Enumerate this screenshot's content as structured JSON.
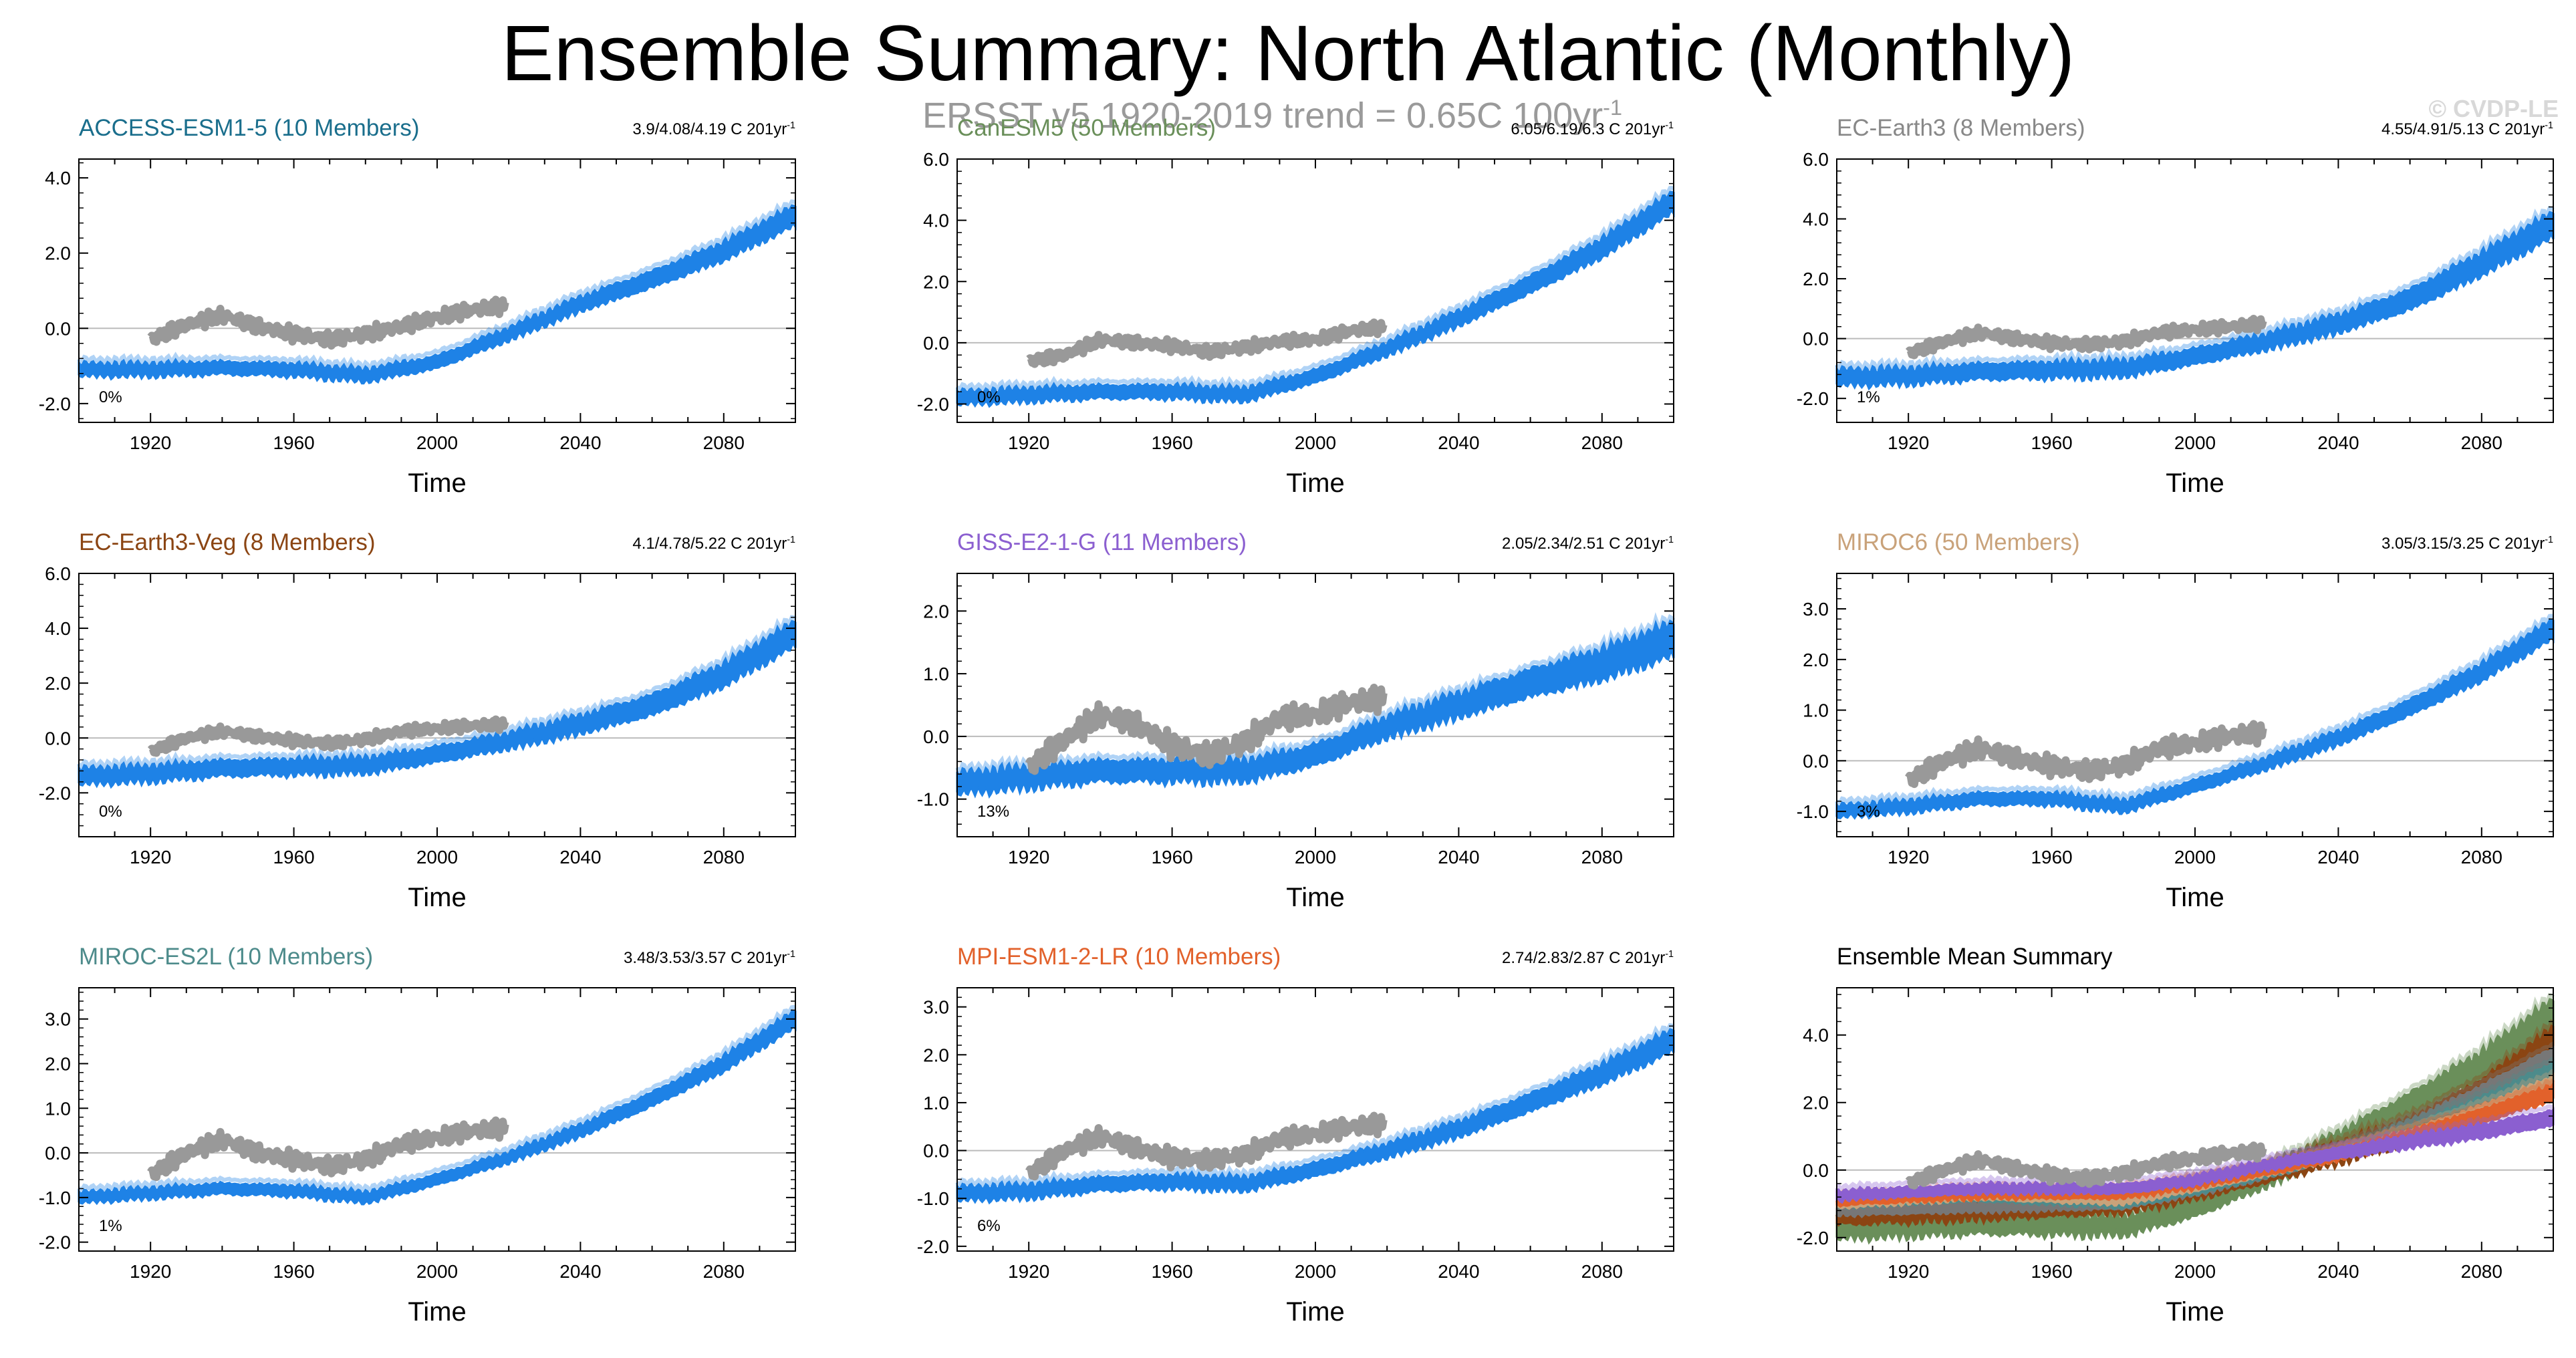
{
  "title": "Ensemble Summary: North Atlantic (Monthly)",
  "subtitle": {
    "text": "ERSST v5 1920-2019 trend = 0.65C 100yr",
    "sup": "-1"
  },
  "credit": "© CVDP-LE",
  "colors": {
    "model_band": "#1e82e6",
    "obs": "#999999",
    "grid": "#bbbbbb",
    "axis": "#000000"
  },
  "chart_data": [
    {
      "type": "line",
      "title": "ACCESS-ESM1-5 (10 Members)",
      "title_color": "#1a6e8c",
      "trend_text": "3.9/4.08/4.19 C 201yr",
      "trend_sup": "-1",
      "pct": "0%",
      "xlabel": "Time",
      "xlim": [
        1900,
        2100
      ],
      "ylim": [
        -2.5,
        4.5
      ],
      "xticks": [
        1920,
        1960,
        2000,
        2040,
        2080
      ],
      "yticks": [
        -2.0,
        0.0,
        2.0,
        4.0
      ],
      "series": [
        {
          "name": "ensemble range",
          "kind": "band",
          "x": [
            1900,
            1920,
            1940,
            1960,
            1980,
            2000,
            2020,
            2040,
            2060,
            2080,
            2100
          ],
          "values": [
            -1.1,
            -1.1,
            -1.05,
            -1.1,
            -1.25,
            -0.9,
            -0.15,
            0.65,
            1.3,
            2.05,
            3.0
          ],
          "width": 0.35
        },
        {
          "name": "ERSST v5",
          "kind": "line",
          "x": [
            1920,
            1930,
            1940,
            1950,
            1960,
            1970,
            1980,
            1990,
            2000,
            2010,
            2019
          ],
          "values": [
            -0.3,
            0.1,
            0.35,
            0.05,
            -0.15,
            -0.3,
            -0.15,
            0.05,
            0.3,
            0.5,
            0.6
          ]
        }
      ]
    },
    {
      "type": "line",
      "title": "CanESM5 (50 Members)",
      "title_color": "#6a8f5a",
      "trend_text": "6.05/6.19/6.3 C 201yr",
      "trend_sup": "-1",
      "pct": "0%",
      "xlabel": "Time",
      "xlim": [
        1900,
        2100
      ],
      "ylim": [
        -2.6,
        6.0
      ],
      "xticks": [
        1920,
        1960,
        2000,
        2040,
        2080
      ],
      "yticks": [
        -2.0,
        0.0,
        2.0,
        4.0,
        6.0
      ],
      "series": [
        {
          "name": "ensemble range",
          "kind": "band",
          "x": [
            1900,
            1920,
            1940,
            1960,
            1980,
            2000,
            2020,
            2040,
            2060,
            2080,
            2100
          ],
          "values": [
            -1.8,
            -1.7,
            -1.6,
            -1.6,
            -1.7,
            -1.1,
            -0.2,
            0.8,
            1.9,
            3.1,
            4.6
          ],
          "width": 0.45
        },
        {
          "name": "ERSST v5",
          "kind": "line",
          "x": [
            1920,
            1930,
            1940,
            1950,
            1960,
            1970,
            1980,
            1990,
            2000,
            2010,
            2019
          ],
          "values": [
            -0.6,
            -0.4,
            0.1,
            0.0,
            -0.1,
            -0.3,
            -0.15,
            0.05,
            0.1,
            0.4,
            0.5
          ]
        }
      ]
    },
    {
      "type": "line",
      "title": "EC-Earth3 (8 Members)",
      "title_color": "#888888",
      "trend_text": "4.55/4.91/5.13 C 201yr",
      "trend_sup": "-1",
      "pct": "1%",
      "xlabel": "Time",
      "xlim": [
        1900,
        2100
      ],
      "ylim": [
        -2.8,
        6.0
      ],
      "xticks": [
        1920,
        1960,
        2000,
        2040,
        2080
      ],
      "yticks": [
        -2.0,
        0.0,
        2.0,
        4.0,
        6.0
      ],
      "series": [
        {
          "name": "ensemble range",
          "kind": "band",
          "x": [
            1900,
            1920,
            1940,
            1960,
            1980,
            2000,
            2020,
            2040,
            2060,
            2080,
            2100
          ],
          "values": [
            -1.3,
            -1.25,
            -1.1,
            -1.05,
            -1.0,
            -0.6,
            -0.1,
            0.5,
            1.3,
            2.5,
            3.8
          ],
          "width": 0.55
        },
        {
          "name": "ERSST v5",
          "kind": "line",
          "x": [
            1920,
            1930,
            1940,
            1950,
            1960,
            1970,
            1980,
            1990,
            2000,
            2010,
            2019
          ],
          "values": [
            -0.5,
            -0.1,
            0.2,
            0.0,
            -0.15,
            -0.2,
            -0.1,
            0.2,
            0.3,
            0.4,
            0.5
          ]
        }
      ]
    },
    {
      "type": "line",
      "title": "EC-Earth3-Veg (8 Members)",
      "title_color": "#8b4513",
      "trend_text": "4.1/4.78/5.22 C 201yr",
      "trend_sup": "-1",
      "pct": "0%",
      "xlabel": "Time",
      "xlim": [
        1900,
        2100
      ],
      "ylim": [
        -3.6,
        6.0
      ],
      "xticks": [
        1920,
        1960,
        2000,
        2040,
        2080
      ],
      "yticks": [
        -2.0,
        0.0,
        2.0,
        4.0,
        6.0
      ],
      "series": [
        {
          "name": "ensemble range",
          "kind": "band",
          "x": [
            1900,
            1920,
            1940,
            1960,
            1980,
            2000,
            2020,
            2040,
            2060,
            2080,
            2100
          ],
          "values": [
            -1.4,
            -1.3,
            -1.1,
            -1.05,
            -1.0,
            -0.6,
            -0.1,
            0.5,
            1.2,
            2.3,
            3.8
          ],
          "width": 0.6
        },
        {
          "name": "ERSST v5",
          "kind": "line",
          "x": [
            1920,
            1930,
            1940,
            1950,
            1960,
            1970,
            1980,
            1990,
            2000,
            2010,
            2019
          ],
          "values": [
            -0.5,
            0.0,
            0.25,
            0.05,
            -0.1,
            -0.2,
            -0.05,
            0.25,
            0.35,
            0.45,
            0.5
          ]
        }
      ]
    },
    {
      "type": "line",
      "title": "GISS-E2-1-G (11 Members)",
      "title_color": "#8b5fd0",
      "trend_text": "2.05/2.34/2.51 C 201yr",
      "trend_sup": "-1",
      "pct": "13%",
      "xlabel": "Time",
      "xlim": [
        1900,
        2100
      ],
      "ylim": [
        -1.6,
        2.6
      ],
      "xticks": [
        1920,
        1960,
        2000,
        2040,
        2080
      ],
      "yticks": [
        -1.0,
        0.0,
        1.0,
        2.0
      ],
      "series": [
        {
          "name": "ensemble range",
          "kind": "band",
          "x": [
            1900,
            1920,
            1940,
            1960,
            1980,
            2000,
            2020,
            2040,
            2060,
            2080,
            2100
          ],
          "values": [
            -0.75,
            -0.65,
            -0.55,
            -0.55,
            -0.55,
            -0.3,
            0.15,
            0.5,
            0.85,
            1.15,
            1.55
          ],
          "width": 0.35
        },
        {
          "name": "ERSST v5",
          "kind": "line",
          "x": [
            1920,
            1930,
            1940,
            1950,
            1960,
            1970,
            1980,
            1990,
            2000,
            2010,
            2019
          ],
          "values": [
            -0.5,
            -0.05,
            0.35,
            0.2,
            -0.15,
            -0.3,
            -0.1,
            0.3,
            0.35,
            0.55,
            0.6
          ]
        }
      ]
    },
    {
      "type": "line",
      "title": "MIROC6 (50 Members)",
      "title_color": "#c9a27a",
      "trend_text": "3.05/3.15/3.25 C 201yr",
      "trend_sup": "-1",
      "pct": "3%",
      "xlabel": "Time",
      "xlim": [
        1900,
        2100
      ],
      "ylim": [
        -1.5,
        3.7
      ],
      "xticks": [
        1920,
        1960,
        2000,
        2040,
        2080
      ],
      "yticks": [
        -1.0,
        0.0,
        1.0,
        2.0,
        3.0
      ],
      "series": [
        {
          "name": "ensemble range",
          "kind": "band",
          "x": [
            1900,
            1920,
            1940,
            1960,
            1980,
            2000,
            2020,
            2040,
            2060,
            2080,
            2100
          ],
          "values": [
            -1.0,
            -0.9,
            -0.75,
            -0.75,
            -0.9,
            -0.5,
            -0.05,
            0.45,
            1.05,
            1.75,
            2.6
          ],
          "width": 0.25
        },
        {
          "name": "ERSST v5",
          "kind": "line",
          "x": [
            1920,
            1930,
            1940,
            1950,
            1960,
            1970,
            1980,
            1990,
            2000,
            2010,
            2019
          ],
          "values": [
            -0.4,
            0.0,
            0.25,
            0.05,
            -0.1,
            -0.2,
            -0.1,
            0.25,
            0.35,
            0.5,
            0.55
          ]
        }
      ]
    },
    {
      "type": "line",
      "title": "MIROC-ES2L (10 Members)",
      "title_color": "#4d8b8b",
      "trend_text": "3.48/3.53/3.57 C 201yr",
      "trend_sup": "-1",
      "pct": "1%",
      "xlabel": "Time",
      "xlim": [
        1900,
        2100
      ],
      "ylim": [
        -2.2,
        3.7
      ],
      "xticks": [
        1920,
        1960,
        2000,
        2040,
        2080
      ],
      "yticks": [
        -2.0,
        -1.0,
        0.0,
        1.0,
        2.0,
        3.0
      ],
      "series": [
        {
          "name": "ensemble range",
          "kind": "band",
          "x": [
            1900,
            1920,
            1940,
            1960,
            1980,
            2000,
            2020,
            2040,
            2060,
            2080,
            2100
          ],
          "values": [
            -1.0,
            -0.9,
            -0.8,
            -0.85,
            -1.0,
            -0.6,
            -0.1,
            0.5,
            1.2,
            2.0,
            3.0
          ],
          "width": 0.25
        },
        {
          "name": "ERSST v5",
          "kind": "line",
          "x": [
            1920,
            1930,
            1940,
            1950,
            1960,
            1970,
            1980,
            1990,
            2000,
            2010,
            2019
          ],
          "values": [
            -0.5,
            0.0,
            0.3,
            0.0,
            -0.15,
            -0.3,
            -0.15,
            0.2,
            0.35,
            0.5,
            0.55
          ]
        }
      ]
    },
    {
      "type": "line",
      "title": "MPI-ESM1-2-LR (10 Members)",
      "title_color": "#e2612b",
      "trend_text": "2.74/2.83/2.87 C 201yr",
      "trend_sup": "-1",
      "pct": "6%",
      "xlabel": "Time",
      "xlim": [
        1900,
        2100
      ],
      "ylim": [
        -2.1,
        3.4
      ],
      "xticks": [
        1920,
        1960,
        2000,
        2040,
        2080
      ],
      "yticks": [
        -2.0,
        -1.0,
        0.0,
        1.0,
        2.0,
        3.0
      ],
      "series": [
        {
          "name": "ensemble range",
          "kind": "band",
          "x": [
            1900,
            1920,
            1940,
            1960,
            1980,
            2000,
            2020,
            2040,
            2060,
            2080,
            2100
          ],
          "values": [
            -0.9,
            -0.85,
            -0.7,
            -0.65,
            -0.7,
            -0.4,
            0.0,
            0.45,
            1.0,
            1.6,
            2.3
          ],
          "width": 0.3
        },
        {
          "name": "ERSST v5",
          "kind": "line",
          "x": [
            1920,
            1930,
            1940,
            1950,
            1960,
            1970,
            1980,
            1990,
            2000,
            2010,
            2019
          ],
          "values": [
            -0.5,
            0.0,
            0.3,
            0.05,
            -0.15,
            -0.2,
            -0.1,
            0.25,
            0.35,
            0.5,
            0.55
          ]
        }
      ]
    },
    {
      "type": "line",
      "title": "Ensemble Mean Summary",
      "title_color": "#000000",
      "trend_text": "",
      "trend_sup": "",
      "pct": "",
      "xlabel": "Time",
      "xlim": [
        1900,
        2100
      ],
      "ylim": [
        -2.4,
        5.4
      ],
      "xticks": [
        1920,
        1960,
        2000,
        2040,
        2080
      ],
      "yticks": [
        -2.0,
        0.0,
        2.0,
        4.0
      ],
      "series": [
        {
          "name": "CanESM5",
          "kind": "band",
          "color": "#6a8f5a",
          "x": [
            1900,
            1940,
            1980,
            2000,
            2020,
            2040,
            2060,
            2080,
            2100
          ],
          "values": [
            -1.75,
            -1.6,
            -1.65,
            -1.1,
            -0.2,
            0.8,
            1.9,
            3.1,
            4.6
          ],
          "width": 0.6
        },
        {
          "name": "EC-Earth3-Veg",
          "kind": "band",
          "color": "#8b4513",
          "x": [
            1900,
            1940,
            1980,
            2000,
            2020,
            2040,
            2060,
            2080,
            2100
          ],
          "values": [
            -1.35,
            -1.2,
            -1.0,
            -0.6,
            -0.1,
            0.5,
            1.2,
            2.3,
            3.8
          ],
          "width": 0.55
        },
        {
          "name": "EC-Earth3",
          "kind": "band",
          "color": "#777777",
          "x": [
            1900,
            1940,
            1980,
            2000,
            2020,
            2040,
            2060,
            2080,
            2100
          ],
          "values": [
            -1.2,
            -1.1,
            -1.0,
            -0.6,
            -0.1,
            0.5,
            1.3,
            2.3,
            3.4
          ],
          "width": 0.3
        },
        {
          "name": "MIROC-ES2L",
          "kind": "band",
          "color": "#4d8b8b",
          "x": [
            1900,
            1940,
            1980,
            2000,
            2020,
            2040,
            2060,
            2080,
            2100
          ],
          "values": [
            -1.0,
            -0.8,
            -1.0,
            -0.6,
            -0.1,
            0.5,
            1.2,
            2.0,
            3.0
          ],
          "width": 0.25
        },
        {
          "name": "MIROC6",
          "kind": "band",
          "color": "#c9a27a",
          "x": [
            1900,
            1940,
            1980,
            2000,
            2020,
            2040,
            2060,
            2080,
            2100
          ],
          "values": [
            -1.0,
            -0.75,
            -0.9,
            -0.5,
            -0.05,
            0.45,
            1.05,
            1.75,
            2.6
          ],
          "width": 0.25
        },
        {
          "name": "MPI-ESM1-2-LR",
          "kind": "band",
          "color": "#e2612b",
          "x": [
            1900,
            1940,
            1980,
            2000,
            2020,
            2040,
            2060,
            2080,
            2100
          ],
          "values": [
            -0.9,
            -0.7,
            -0.7,
            -0.4,
            0.0,
            0.45,
            1.0,
            1.6,
            2.3
          ],
          "width": 0.3
        },
        {
          "name": "GISS-E2-1-G",
          "kind": "band",
          "color": "#8b5fd0",
          "x": [
            1900,
            1940,
            1980,
            2000,
            2020,
            2040,
            2060,
            2080,
            2100
          ],
          "values": [
            -0.75,
            -0.55,
            -0.55,
            -0.3,
            0.15,
            0.5,
            0.85,
            1.15,
            1.55
          ],
          "width": 0.3
        },
        {
          "name": "ERSST v5",
          "kind": "line",
          "color": "#999999",
          "x": [
            1920,
            1930,
            1940,
            1950,
            1960,
            1970,
            1980,
            1990,
            2000,
            2010,
            2019
          ],
          "values": [
            -0.4,
            0.0,
            0.3,
            0.05,
            -0.15,
            -0.25,
            -0.1,
            0.2,
            0.35,
            0.5,
            0.55
          ]
        }
      ]
    }
  ]
}
